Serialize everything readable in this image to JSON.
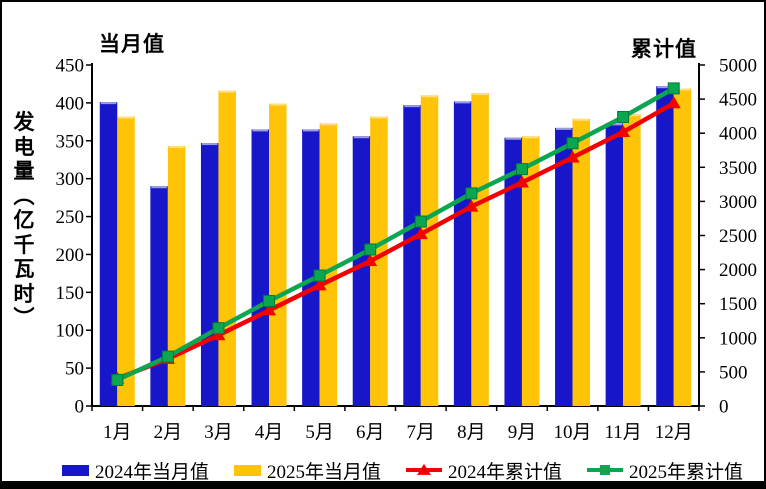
{
  "frame": {
    "left_axis_corner_title": "当月值",
    "right_axis_corner_title": "累计值",
    "y_axis_title": "发电量（亿千瓦时）"
  },
  "colors": {
    "bar_2024": "#1717C9",
    "bar_2024_top_edge": "#9C9CE4",
    "bar_2025": "#FFC408",
    "bar_2025_top_edge": "#FFDF80",
    "line_2024": "#F40000",
    "line_2025": "#0AA650",
    "marker_square_edge": "#007A3C",
    "axis": "#000000"
  },
  "legend": {
    "items": [
      {
        "label": "2024年当月值",
        "swatch": "blue-bar"
      },
      {
        "label": "2025年当月值",
        "swatch": "yellow-bar"
      },
      {
        "label": "2024年累计值",
        "swatch": "red-line-triangle"
      },
      {
        "label": "2025年累计值",
        "swatch": "green-line-square"
      }
    ]
  },
  "chart_data": {
    "type": "bar",
    "subtype": "combo-bar-line-dual-axis",
    "title": "",
    "categories": [
      "1月",
      "2月",
      "3月",
      "4月",
      "5月",
      "6月",
      "7月",
      "8月",
      "9月",
      "10月",
      "11月",
      "12月"
    ],
    "left_axis": {
      "corner_title": "当月值",
      "axis_label": "发电量（亿千瓦时）",
      "range": [
        0,
        450
      ],
      "tick_step": 50
    },
    "right_axis": {
      "corner_title": "累计值",
      "range": [
        0,
        5000
      ],
      "tick_step": 500
    },
    "grid": false,
    "legend_position": "bottom",
    "series": [
      {
        "name": "2024年当月值",
        "type": "bar",
        "axis": "left",
        "color": "#1717C9",
        "marker": "none",
        "values": [
          401,
          290,
          347,
          365,
          365,
          356,
          397,
          402,
          354,
          367,
          373,
          422
        ]
      },
      {
        "name": "2025年当月值",
        "type": "bar",
        "axis": "left",
        "color": "#FFC408",
        "marker": "none",
        "values": [
          382,
          343,
          416,
          399,
          373,
          382,
          410,
          413,
          356,
          379,
          385,
          419
        ]
      },
      {
        "name": "2024年累计值",
        "type": "line",
        "axis": "right",
        "color": "#F40000",
        "marker": "triangle",
        "values": [
          401,
          691,
          1038,
          1403,
          1768,
          2124,
          2521,
          2923,
          3277,
          3644,
          4017,
          4439
        ]
      },
      {
        "name": "2025年累计值",
        "type": "line",
        "axis": "right",
        "color": "#0AA650",
        "marker": "square",
        "values": [
          382,
          725,
          1141,
          1540,
          1913,
          2295,
          2705,
          3118,
          3474,
          3853,
          4238,
          4657
        ]
      }
    ]
  }
}
